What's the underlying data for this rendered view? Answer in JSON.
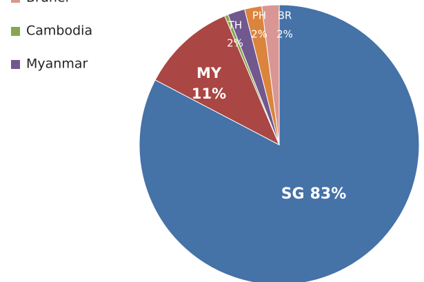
{
  "chart_data": {
    "type": "pie",
    "slice_labels": [
      "SG",
      "MY",
      null,
      "TH",
      "PH",
      "BR"
    ],
    "values": [
      83,
      11,
      0.4,
      2,
      2,
      2
    ],
    "value_labels": [
      "83%",
      "11%",
      null,
      "2%",
      "2%",
      "2%"
    ],
    "colors": [
      "#4572a7",
      "#aa4643",
      "#89a54e",
      "#71588f",
      "#db843d",
      "#d99694"
    ],
    "legend": [
      {
        "name": "Brunei",
        "color": "#d99694"
      },
      {
        "name": "Cambodia",
        "color": "#89a54e"
      },
      {
        "name": "Myanmar",
        "color": "#71588f"
      }
    ]
  }
}
